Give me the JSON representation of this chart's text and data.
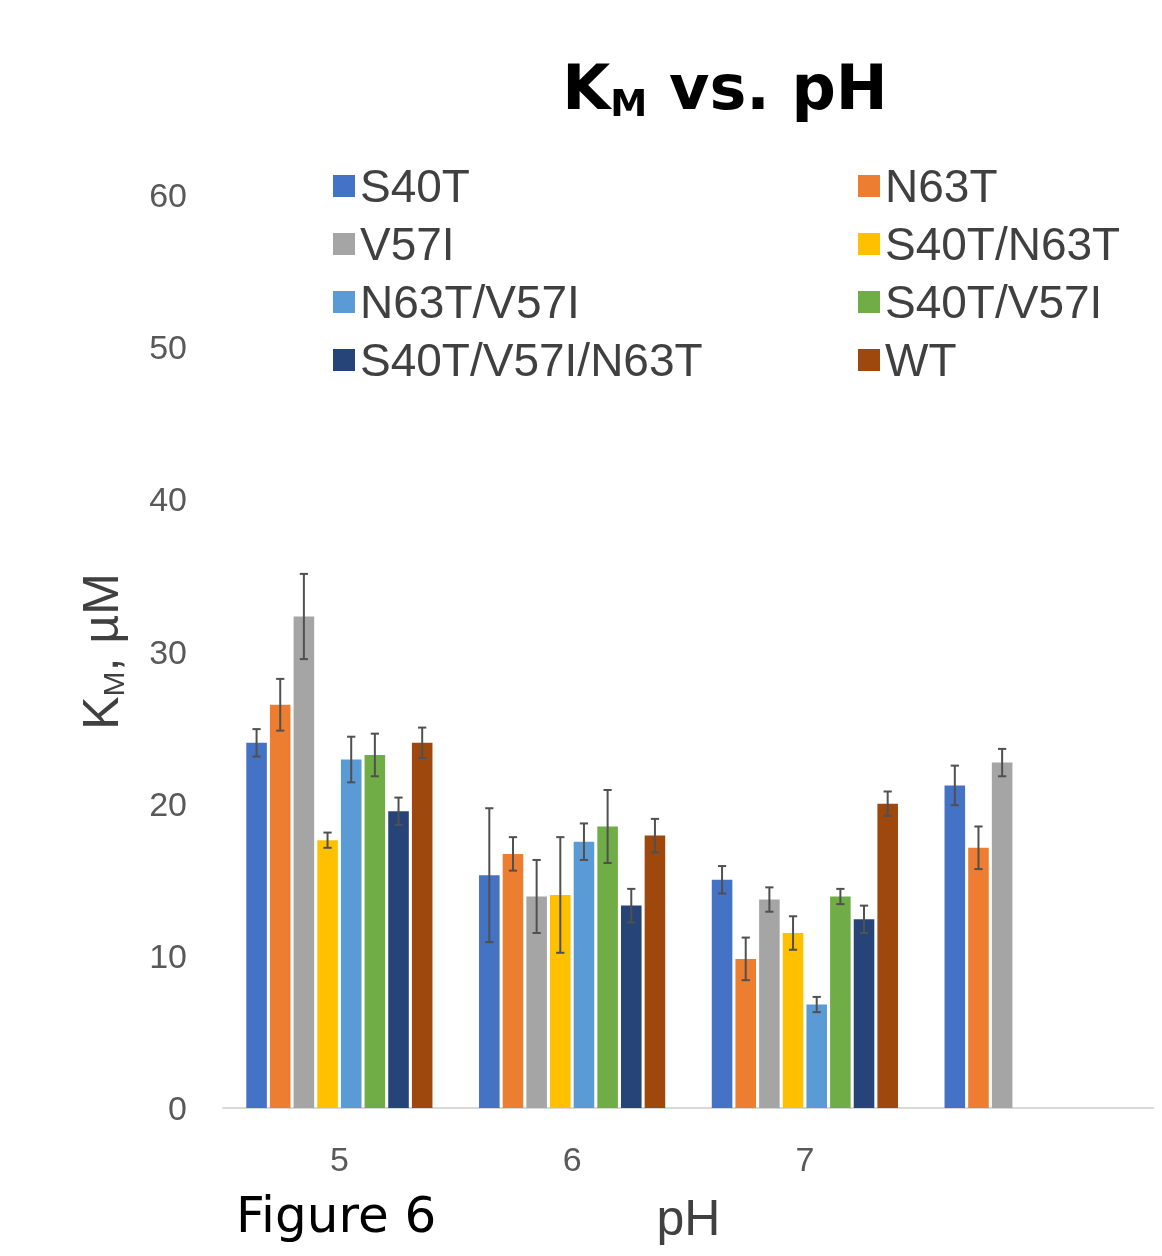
{
  "chart_data": {
    "type": "bar",
    "title": "K$_{M}$ vs. pH",
    "xlabel": "pH",
    "ylabel": "K$_{M}$, µM",
    "categories": [
      "5",
      "6",
      "7",
      null
    ],
    "series": [
      {
        "name": "S40T",
        "color": "#4472c4",
        "values": [
          24.0,
          15.3,
          15.0,
          21.2
        ],
        "errors": [
          0.9,
          4.4,
          0.9,
          1.3
        ]
      },
      {
        "name": "N63T",
        "color": "#ed7d31",
        "values": [
          26.5,
          16.7,
          9.8,
          17.1
        ],
        "errors": [
          1.7,
          1.1,
          1.4,
          1.4
        ]
      },
      {
        "name": "V57I",
        "color": "#a5a5a5",
        "values": [
          32.3,
          13.9,
          13.7,
          22.7
        ],
        "errors": [
          2.8,
          2.4,
          0.8,
          0.9
        ]
      },
      {
        "name": "S40T/N63T",
        "color": "#ffc000",
        "values": [
          17.6,
          14.0,
          11.5,
          null
        ],
        "errors": [
          0.5,
          3.8,
          1.1,
          null
        ]
      },
      {
        "name": "N63T/V57I",
        "color": "#5b9bd5",
        "values": [
          22.9,
          17.5,
          6.8,
          null
        ],
        "errors": [
          1.5,
          1.2,
          0.5,
          null
        ]
      },
      {
        "name": "S40T/V57I",
        "color": "#70ad47",
        "values": [
          23.2,
          18.5,
          13.9,
          null
        ],
        "errors": [
          1.4,
          2.4,
          0.5,
          null
        ]
      },
      {
        "name": "S40T/V57I/N63T",
        "color": "#264478",
        "values": [
          19.5,
          13.3,
          12.4,
          null
        ],
        "errors": [
          0.9,
          1.1,
          0.9,
          null
        ]
      },
      {
        "name": "WT",
        "color": "#9e480e",
        "values": [
          24.0,
          17.9,
          20.0,
          null
        ],
        "errors": [
          1.0,
          1.1,
          0.8,
          null
        ]
      }
    ],
    "ylim": [
      0,
      60
    ],
    "yticks": [
      0,
      10,
      20,
      30,
      40,
      50,
      60
    ],
    "grid": false,
    "legend": "top",
    "annotations": [
      "Figure 6"
    ]
  }
}
